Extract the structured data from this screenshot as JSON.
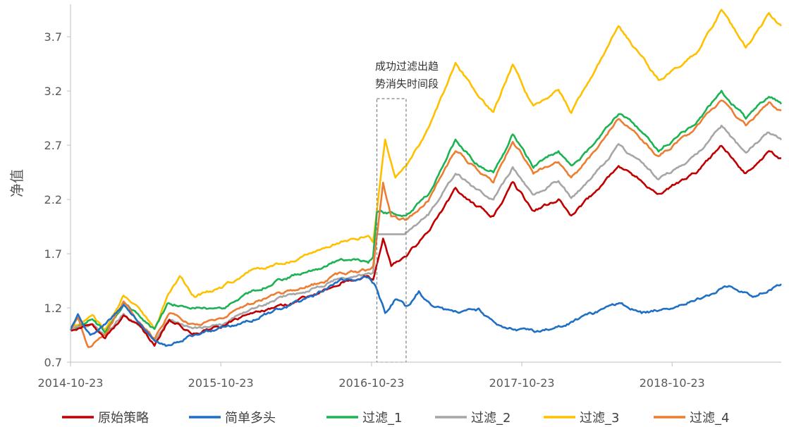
{
  "chart_data": {
    "type": "line",
    "title": "",
    "xlabel": "",
    "ylabel": "净值",
    "ylim": [
      0.7,
      4.0
    ],
    "yticks": [
      "0.7",
      "1.2",
      "1.7",
      "2.2",
      "2.7",
      "3.2",
      "3.7"
    ],
    "xticks": [
      "2014-10-23",
      "2015-10-23",
      "2016-10-23",
      "2017-10-23",
      "2018-10-23"
    ],
    "x_range": [
      "2014-10-23",
      "2019-07-15"
    ],
    "grid": false,
    "legend_position": "bottom",
    "annotation": {
      "lines": [
        "成功过滤出趋",
        "势消失时间段"
      ],
      "x_start": "2016-11-05",
      "x_end": "2017-01-15"
    },
    "series": [
      {
        "name": "原始策略",
        "color": "#C00000",
        "points": [
          [
            "2014-10-23",
            1.0
          ],
          [
            "2014-12-15",
            1.05
          ],
          [
            "2015-01-15",
            0.93
          ],
          [
            "2015-03-01",
            1.12
          ],
          [
            "2015-04-15",
            1.0
          ],
          [
            "2015-05-15",
            0.85
          ],
          [
            "2015-06-20",
            1.1
          ],
          [
            "2015-08-15",
            0.97
          ],
          [
            "2015-10-23",
            1.02
          ],
          [
            "2016-01-10",
            1.15
          ],
          [
            "2016-03-10",
            1.2
          ],
          [
            "2016-06-10",
            1.32
          ],
          [
            "2016-08-10",
            1.45
          ],
          [
            "2016-10-15",
            1.5
          ],
          [
            "2016-10-27",
            1.47
          ],
          [
            "2016-11-20",
            1.85
          ],
          [
            "2016-12-10",
            1.6
          ],
          [
            "2017-01-15",
            1.68
          ],
          [
            "2017-03-10",
            1.9
          ],
          [
            "2017-05-15",
            2.3
          ],
          [
            "2017-07-01",
            2.15
          ],
          [
            "2017-08-15",
            2.05
          ],
          [
            "2017-10-01",
            2.35
          ],
          [
            "2017-11-20",
            2.1
          ],
          [
            "2018-01-20",
            2.2
          ],
          [
            "2018-02-20",
            2.05
          ],
          [
            "2018-04-15",
            2.25
          ],
          [
            "2018-06-15",
            2.5
          ],
          [
            "2018-08-01",
            2.4
          ],
          [
            "2018-09-20",
            2.25
          ],
          [
            "2018-12-20",
            2.45
          ],
          [
            "2019-02-20",
            2.7
          ],
          [
            "2019-04-20",
            2.45
          ],
          [
            "2019-06-15",
            2.65
          ],
          [
            "2019-07-15",
            2.58
          ]
        ]
      },
      {
        "name": "简单多头",
        "color": "#1F6FC5",
        "points": [
          [
            "2014-10-23",
            1.0
          ],
          [
            "2014-11-10",
            1.15
          ],
          [
            "2014-12-10",
            0.95
          ],
          [
            "2015-01-15",
            1.05
          ],
          [
            "2015-03-01",
            1.22
          ],
          [
            "2015-04-15",
            1.05
          ],
          [
            "2015-05-15",
            0.92
          ],
          [
            "2015-06-15",
            0.85
          ],
          [
            "2015-08-15",
            0.95
          ],
          [
            "2015-10-23",
            1.0
          ],
          [
            "2016-01-10",
            1.1
          ],
          [
            "2016-03-10",
            1.18
          ],
          [
            "2016-06-10",
            1.32
          ],
          [
            "2016-08-10",
            1.45
          ],
          [
            "2016-10-15",
            1.48
          ],
          [
            "2016-11-01",
            1.4
          ],
          [
            "2016-11-25",
            1.15
          ],
          [
            "2016-12-20",
            1.28
          ],
          [
            "2017-01-15",
            1.2
          ],
          [
            "2017-02-15",
            1.35
          ],
          [
            "2017-03-20",
            1.2
          ],
          [
            "2017-05-10",
            1.15
          ],
          [
            "2017-07-10",
            1.18
          ],
          [
            "2017-08-20",
            1.05
          ],
          [
            "2017-10-10",
            1.0
          ],
          [
            "2017-12-10",
            0.98
          ],
          [
            "2018-02-10",
            1.05
          ],
          [
            "2018-04-20",
            1.15
          ],
          [
            "2018-06-20",
            1.25
          ],
          [
            "2018-08-10",
            1.15
          ],
          [
            "2018-10-10",
            1.2
          ],
          [
            "2018-12-20",
            1.28
          ],
          [
            "2019-03-10",
            1.4
          ],
          [
            "2019-05-10",
            1.32
          ],
          [
            "2019-07-15",
            1.42
          ]
        ]
      },
      {
        "name": "过滤_1",
        "color": "#1DB254",
        "points": [
          [
            "2014-10-23",
            1.0
          ],
          [
            "2014-12-15",
            1.1
          ],
          [
            "2015-01-15",
            0.98
          ],
          [
            "2015-03-01",
            1.25
          ],
          [
            "2015-04-15",
            1.1
          ],
          [
            "2015-05-15",
            1.0
          ],
          [
            "2015-06-15",
            1.22
          ],
          [
            "2015-08-01",
            1.22
          ],
          [
            "2015-10-23",
            1.18
          ],
          [
            "2016-01-10",
            1.35
          ],
          [
            "2016-03-10",
            1.45
          ],
          [
            "2016-06-10",
            1.55
          ],
          [
            "2016-08-10",
            1.65
          ],
          [
            "2016-10-15",
            1.62
          ],
          [
            "2016-10-27",
            1.66
          ],
          [
            "2016-11-05",
            2.08
          ],
          [
            "2017-01-15",
            2.05
          ],
          [
            "2017-03-10",
            2.25
          ],
          [
            "2017-05-15",
            2.75
          ],
          [
            "2017-07-01",
            2.55
          ],
          [
            "2017-08-15",
            2.45
          ],
          [
            "2017-10-01",
            2.8
          ],
          [
            "2017-11-20",
            2.5
          ],
          [
            "2018-01-20",
            2.65
          ],
          [
            "2018-02-20",
            2.5
          ],
          [
            "2018-04-15",
            2.7
          ],
          [
            "2018-06-15",
            3.0
          ],
          [
            "2018-08-01",
            2.85
          ],
          [
            "2018-09-20",
            2.65
          ],
          [
            "2018-12-20",
            2.9
          ],
          [
            "2019-02-20",
            3.2
          ],
          [
            "2019-04-20",
            2.95
          ],
          [
            "2019-06-15",
            3.15
          ],
          [
            "2019-07-15",
            3.08
          ]
        ]
      },
      {
        "name": "过滤_2",
        "color": "#A6A6A6",
        "points": [
          [
            "2014-10-23",
            1.0
          ],
          [
            "2014-12-15",
            1.06
          ],
          [
            "2015-01-15",
            0.95
          ],
          [
            "2015-03-01",
            1.15
          ],
          [
            "2015-04-15",
            1.02
          ],
          [
            "2015-05-15",
            0.9
          ],
          [
            "2015-06-20",
            1.08
          ],
          [
            "2015-08-15",
            1.0
          ],
          [
            "2015-10-23",
            1.05
          ],
          [
            "2016-01-10",
            1.2
          ],
          [
            "2016-03-10",
            1.28
          ],
          [
            "2016-06-10",
            1.38
          ],
          [
            "2016-08-10",
            1.48
          ],
          [
            "2016-10-15",
            1.5
          ],
          [
            "2016-10-27",
            1.52
          ],
          [
            "2016-11-05",
            1.88
          ],
          [
            "2017-01-15",
            1.88
          ],
          [
            "2017-03-10",
            2.05
          ],
          [
            "2017-05-15",
            2.45
          ],
          [
            "2017-07-01",
            2.3
          ],
          [
            "2017-08-15",
            2.2
          ],
          [
            "2017-10-01",
            2.5
          ],
          [
            "2017-11-20",
            2.25
          ],
          [
            "2018-01-20",
            2.38
          ],
          [
            "2018-02-20",
            2.22
          ],
          [
            "2018-04-15",
            2.42
          ],
          [
            "2018-06-15",
            2.7
          ],
          [
            "2018-08-01",
            2.55
          ],
          [
            "2018-09-20",
            2.38
          ],
          [
            "2018-12-20",
            2.6
          ],
          [
            "2019-02-20",
            2.88
          ],
          [
            "2019-04-20",
            2.62
          ],
          [
            "2019-06-15",
            2.82
          ],
          [
            "2019-07-15",
            2.75
          ]
        ]
      },
      {
        "name": "过滤_3",
        "color": "#FFC000",
        "points": [
          [
            "2014-10-23",
            1.0
          ],
          [
            "2014-12-15",
            1.15
          ],
          [
            "2015-01-15",
            1.0
          ],
          [
            "2015-03-01",
            1.32
          ],
          [
            "2015-04-15",
            1.15
          ],
          [
            "2015-05-15",
            1.0
          ],
          [
            "2015-06-15",
            1.3
          ],
          [
            "2015-07-15",
            1.48
          ],
          [
            "2015-08-20",
            1.3
          ],
          [
            "2015-10-23",
            1.38
          ],
          [
            "2016-01-10",
            1.55
          ],
          [
            "2016-03-10",
            1.6
          ],
          [
            "2016-06-10",
            1.72
          ],
          [
            "2016-08-10",
            1.82
          ],
          [
            "2016-10-15",
            1.85
          ],
          [
            "2016-10-27",
            1.8
          ],
          [
            "2016-11-25",
            2.75
          ],
          [
            "2016-12-20",
            2.4
          ],
          [
            "2017-01-15",
            2.5
          ],
          [
            "2017-03-10",
            2.85
          ],
          [
            "2017-05-15",
            3.45
          ],
          [
            "2017-07-01",
            3.2
          ],
          [
            "2017-08-15",
            3.0
          ],
          [
            "2017-10-01",
            3.45
          ],
          [
            "2017-11-20",
            3.05
          ],
          [
            "2018-01-20",
            3.2
          ],
          [
            "2018-02-20",
            3.0
          ],
          [
            "2018-04-15",
            3.35
          ],
          [
            "2018-06-15",
            3.8
          ],
          [
            "2018-08-01",
            3.55
          ],
          [
            "2018-09-20",
            3.3
          ],
          [
            "2018-12-20",
            3.55
          ],
          [
            "2019-02-20",
            3.95
          ],
          [
            "2019-04-20",
            3.6
          ],
          [
            "2019-06-15",
            3.9
          ],
          [
            "2019-07-15",
            3.8
          ]
        ]
      },
      {
        "name": "过滤_4",
        "color": "#ED7D31",
        "points": [
          [
            "2014-10-23",
            1.0
          ],
          [
            "2014-11-10",
            1.12
          ],
          [
            "2014-12-05",
            0.85
          ],
          [
            "2015-01-15",
            0.95
          ],
          [
            "2015-03-01",
            1.25
          ],
          [
            "2015-04-15",
            1.05
          ],
          [
            "2015-05-15",
            0.9
          ],
          [
            "2015-06-20",
            1.15
          ],
          [
            "2015-08-15",
            1.05
          ],
          [
            "2015-10-23",
            1.1
          ],
          [
            "2016-01-10",
            1.25
          ],
          [
            "2016-03-10",
            1.32
          ],
          [
            "2016-06-10",
            1.42
          ],
          [
            "2016-08-10",
            1.52
          ],
          [
            "2016-10-15",
            1.55
          ],
          [
            "2016-10-27",
            1.58
          ],
          [
            "2016-11-20",
            2.35
          ],
          [
            "2016-12-10",
            2.05
          ],
          [
            "2017-01-15",
            2.0
          ],
          [
            "2017-03-10",
            2.2
          ],
          [
            "2017-05-15",
            2.65
          ],
          [
            "2017-07-01",
            2.5
          ],
          [
            "2017-08-15",
            2.35
          ],
          [
            "2017-10-01",
            2.75
          ],
          [
            "2017-11-20",
            2.45
          ],
          [
            "2018-01-20",
            2.55
          ],
          [
            "2018-02-20",
            2.4
          ],
          [
            "2018-04-15",
            2.62
          ],
          [
            "2018-06-15",
            2.95
          ],
          [
            "2018-08-01",
            2.8
          ],
          [
            "2018-09-20",
            2.6
          ],
          [
            "2018-12-20",
            2.85
          ],
          [
            "2019-02-20",
            3.12
          ],
          [
            "2019-04-20",
            2.88
          ],
          [
            "2019-06-15",
            3.1
          ],
          [
            "2019-07-15",
            3.02
          ]
        ]
      }
    ]
  }
}
